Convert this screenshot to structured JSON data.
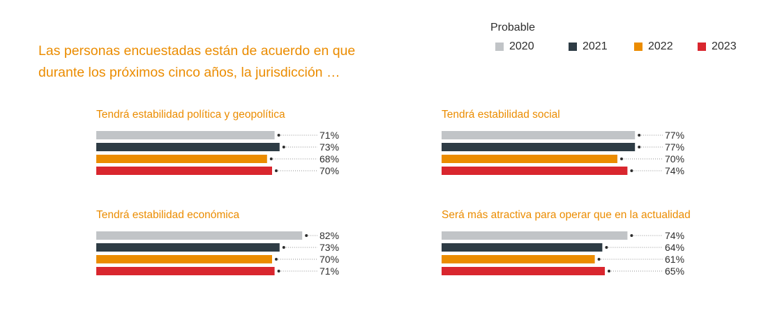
{
  "title": "Las personas encuestadas están de acuerdo en que durante los próximos cinco años, la jurisdicción …",
  "title_lines": [
    "Las personas encuestadas están de acuerdo en que",
    "durante los próximos cinco años, la jurisdicción …"
  ],
  "legend": {
    "heading": "Probable",
    "items": [
      {
        "label": "2020",
        "color": "#C1C4C7"
      },
      {
        "label": "2021",
        "color": "#2E3C45"
      },
      {
        "label": "2022",
        "color": "#EB8C00"
      },
      {
        "label": "2023",
        "color": "#D9262E"
      }
    ]
  },
  "chart_data": [
    {
      "type": "bar",
      "orientation": "horizontal",
      "title": "Tendrá estabilidad política y geopolítica",
      "categories": [
        "2020",
        "2021",
        "2022",
        "2023"
      ],
      "values": [
        71,
        73,
        68,
        70
      ],
      "labels": [
        "71%",
        "73%",
        "68%",
        "70%"
      ],
      "unit": "%",
      "xlim": [
        0,
        100
      ]
    },
    {
      "type": "bar",
      "orientation": "horizontal",
      "title": "Tendrá estabilidad social",
      "categories": [
        "2020",
        "2021",
        "2022",
        "2023"
      ],
      "values": [
        77,
        77,
        70,
        74
      ],
      "labels": [
        "77%",
        "77%",
        "70%",
        "74%"
      ],
      "unit": "%",
      "xlim": [
        0,
        100
      ]
    },
    {
      "type": "bar",
      "orientation": "horizontal",
      "title": "Tendrá estabilidad económica",
      "categories": [
        "2020",
        "2021",
        "2022",
        "2023"
      ],
      "values": [
        82,
        73,
        70,
        71
      ],
      "labels": [
        "82%",
        "73%",
        "70%",
        "71%"
      ],
      "unit": "%",
      "xlim": [
        0,
        100
      ]
    },
    {
      "type": "bar",
      "orientation": "horizontal",
      "title": "Será más atractiva para operar que en la actualidad",
      "categories": [
        "2020",
        "2021",
        "2022",
        "2023"
      ],
      "values": [
        74,
        64,
        61,
        65
      ],
      "labels": [
        "74%",
        "64%",
        "61%",
        "65%"
      ],
      "unit": "%",
      "xlim": [
        0,
        100
      ]
    }
  ]
}
